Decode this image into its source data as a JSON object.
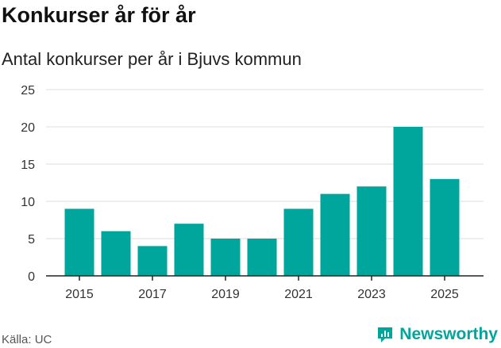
{
  "header": {
    "title": "Konkurser år för år"
  },
  "footer": {
    "source": "Källa: UC",
    "brand": "Newsworthy",
    "brand_icon": "newsworthy-logo-icon"
  },
  "colors": {
    "bar": "#00a69c",
    "grid": "#dddddd",
    "axis": "#222222",
    "brand": "#00a69c"
  },
  "chart_data": {
    "type": "bar",
    "title": "Antal konkurser per år i Bjuvs kommun",
    "xlabel": "",
    "ylabel": "",
    "categories": [
      "2015",
      "2016",
      "2017",
      "2018",
      "2019",
      "2020",
      "2021",
      "2022",
      "2023",
      "2024",
      "2025"
    ],
    "values": [
      9,
      6,
      4,
      7,
      5,
      5,
      9,
      11,
      12,
      20,
      13
    ],
    "x_tick_labels": [
      "2015",
      "2017",
      "2019",
      "2021",
      "2023",
      "2025"
    ],
    "y_ticks": [
      0,
      5,
      10,
      15,
      20,
      25
    ],
    "ylim": [
      0,
      25
    ],
    "grid": true,
    "legend": "none"
  }
}
